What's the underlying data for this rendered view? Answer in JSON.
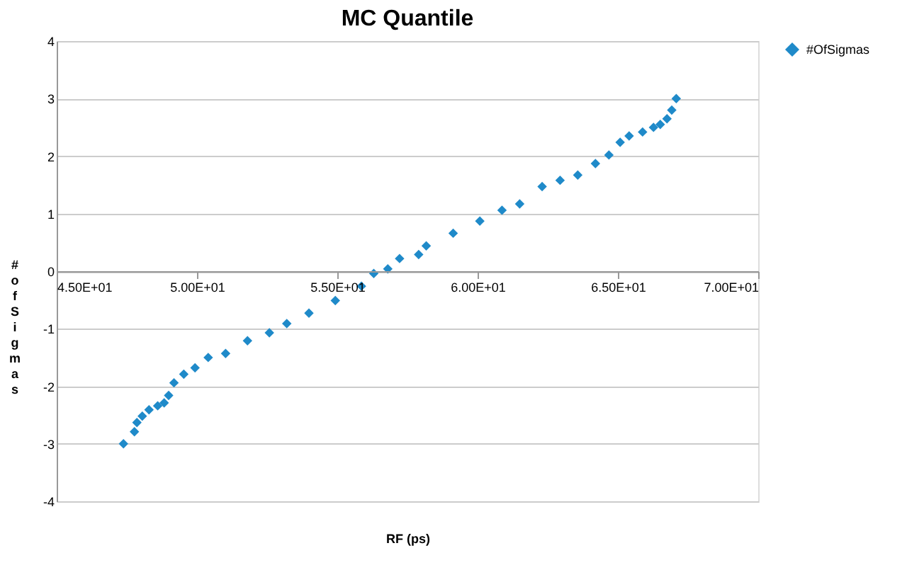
{
  "chart_data": {
    "type": "scatter",
    "title": "MC Quantile",
    "xlabel": "RF (ps)",
    "ylabel": "# of Sigmas",
    "xlim": [
      45,
      70
    ],
    "ylim": [
      -4,
      4
    ],
    "xticks": [
      {
        "value": 45,
        "label": "4.50E+01"
      },
      {
        "value": 50,
        "label": "5.00E+01"
      },
      {
        "value": 55,
        "label": "5.50E+01"
      },
      {
        "value": 60,
        "label": "6.00E+01"
      },
      {
        "value": 65,
        "label": "6.50E+01"
      },
      {
        "value": 70,
        "label": "7.00E+01"
      }
    ],
    "yticks": [
      -4,
      -3,
      -2,
      -1,
      0,
      1,
      2,
      3,
      4
    ],
    "grid": "y",
    "legend": "right",
    "marker": "diamond",
    "series": [
      {
        "name": "#OfSigmas",
        "color": "#1f8ac9",
        "x": [
          47.38,
          47.77,
          47.86,
          48.05,
          48.29,
          48.6,
          48.83,
          48.99,
          49.18,
          49.53,
          49.93,
          50.4,
          51.02,
          51.8,
          52.58,
          53.2,
          53.99,
          54.93,
          55.86,
          56.3,
          56.8,
          57.22,
          57.9,
          58.17,
          59.13,
          60.08,
          60.87,
          61.5,
          62.3,
          62.94,
          63.57,
          64.2,
          64.68,
          65.08,
          65.4,
          65.88,
          66.27,
          66.51,
          66.75,
          66.92,
          67.08
        ],
        "values": [
          -3.0,
          -2.79,
          -2.63,
          -2.52,
          -2.41,
          -2.34,
          -2.29,
          -2.16,
          -1.94,
          -1.79,
          -1.68,
          -1.5,
          -1.43,
          -1.21,
          -1.07,
          -0.91,
          -0.73,
          -0.51,
          -0.26,
          -0.04,
          0.04,
          0.22,
          0.29,
          0.44,
          0.66,
          0.87,
          1.06,
          1.17,
          1.47,
          1.58,
          1.67,
          1.87,
          2.02,
          2.24,
          2.35,
          2.42,
          2.5,
          2.55,
          2.65,
          2.8,
          3.0
        ]
      }
    ]
  }
}
